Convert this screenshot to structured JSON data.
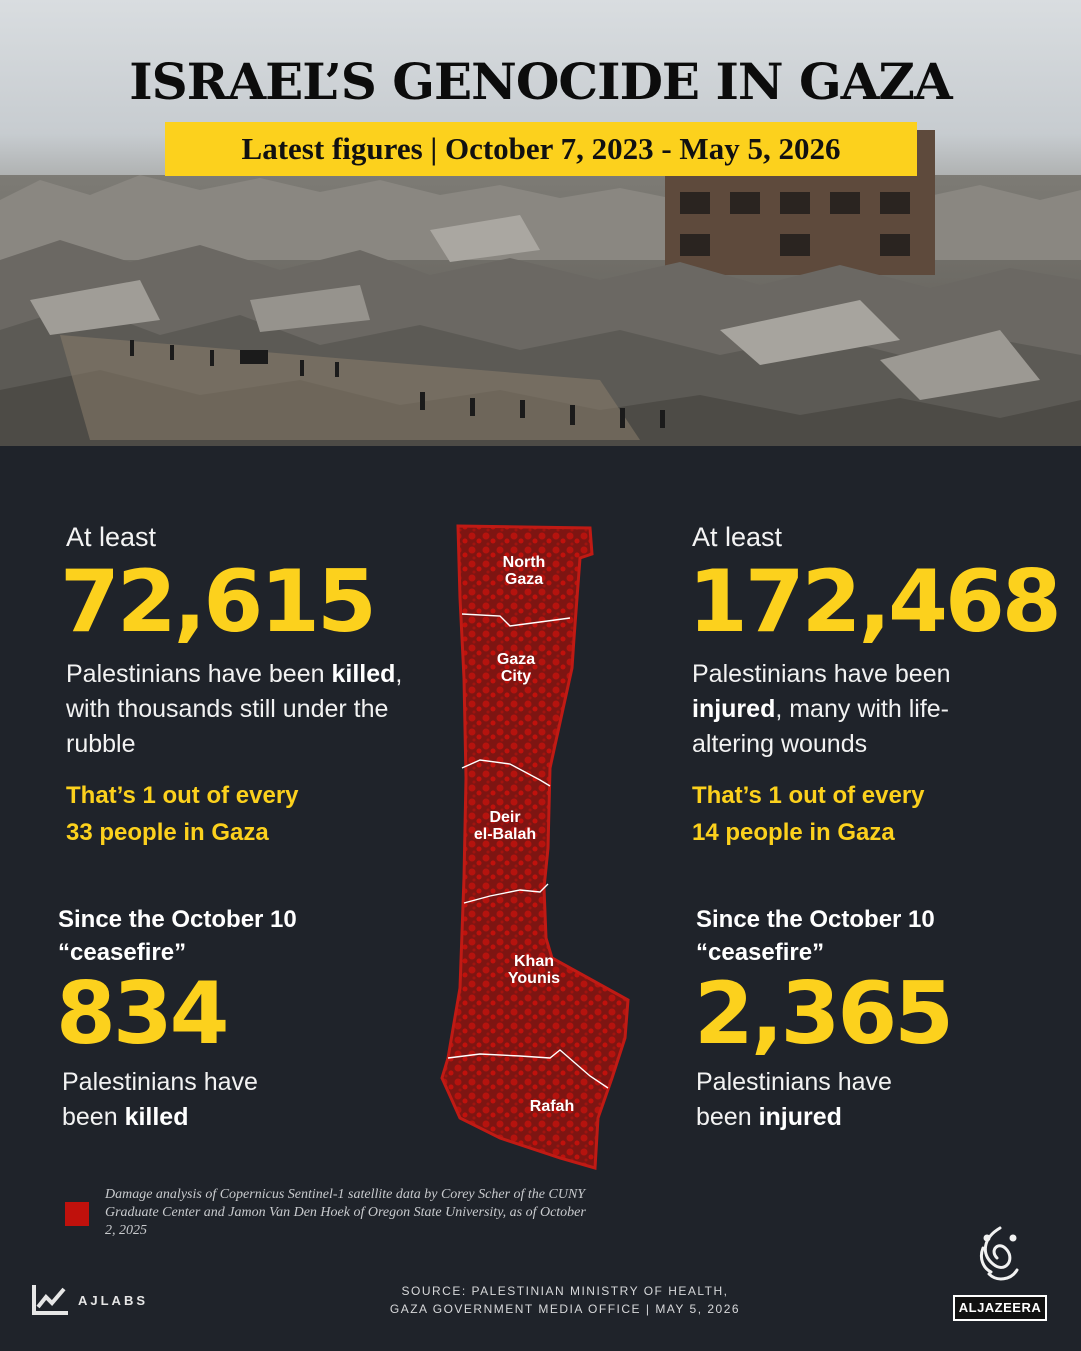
{
  "header": {
    "title": "ISRAEL’S GENOCIDE IN GAZA",
    "subtitle": "Latest figures | October 7, 2023 - May 5, 2026"
  },
  "killed": {
    "lead": "At least",
    "value": "72,615",
    "desc_pre": "Palestinians have been ",
    "desc_bold": "killed",
    "desc_post": ", with thousands still under the rubble",
    "ratio_line1": "That’s 1 out of every",
    "ratio_line2": "33 people in Gaza"
  },
  "injured": {
    "lead": "At least",
    "value": "172,468",
    "desc_pre": "Palestinians have been ",
    "desc_bold": "injured",
    "desc_post": ", many with life-altering wounds",
    "ratio_line1": "That’s 1 out of every",
    "ratio_line2": "14 people in Gaza"
  },
  "ceasefire_killed": {
    "since_line1": "Since the October 10",
    "since_line2": "“ceasefire”",
    "value": "834",
    "desc_line1": "Palestinians have",
    "desc_pre": "been ",
    "desc_bold": "killed"
  },
  "ceasefire_injured": {
    "since_line1": "Since the October 10",
    "since_line2": "“ceasefire”",
    "value": "2,365",
    "desc_line1": "Palestinians have",
    "desc_pre": "been ",
    "desc_bold": "injured"
  },
  "map": {
    "regions": [
      {
        "line1": "North",
        "line2": "Gaza"
      },
      {
        "line1": "Gaza",
        "line2": "City"
      },
      {
        "line1": "Deir",
        "line2": "el-Balah"
      },
      {
        "line1": "Khan",
        "line2": "Younis"
      },
      {
        "line1": "Rafah",
        "line2": ""
      }
    ],
    "damage_color": "#c0110c"
  },
  "legend": {
    "text": "Damage analysis of Copernicus Sentinel-1 satellite data by  Corey Scher of the CUNY Graduate Center and Jamon Van Den Hoek of Oregon State University, as of  October 2, 2025"
  },
  "footer": {
    "source_line1": "SOURCE:  PALESTINIAN MINISTRY OF HEALTH,",
    "source_line2": "GAZA GOVERNMENT MEDIA OFFICE   |   MAY 5, 2026",
    "ajlabs": "AJLABS",
    "aljazeera": "ALJAZEERA"
  },
  "colors": {
    "accent": "#fcd11d",
    "background": "#1f232a"
  }
}
